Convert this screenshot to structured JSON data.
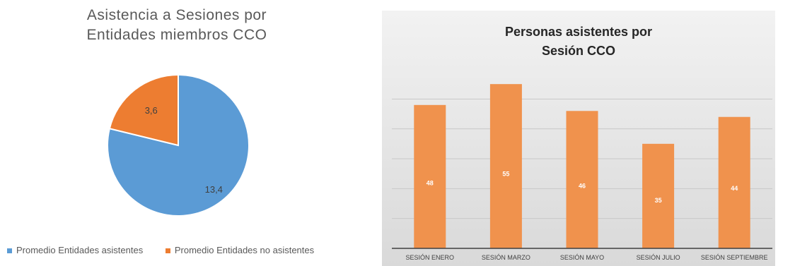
{
  "chart_data": [
    {
      "type": "pie",
      "title_lines": [
        "Asistencia a Sesiones por",
        "Entidades miembros CCO"
      ],
      "slices": [
        {
          "label": "Promedio Entidades asistentes",
          "value": 13.4,
          "value_label": "13,4",
          "color": "#5b9bd5"
        },
        {
          "label": "Promedio Entidades no asistentes",
          "value": 3.6,
          "value_label": "3,6",
          "color": "#ed7d31"
        }
      ],
      "legend_position": "bottom"
    },
    {
      "type": "bar",
      "title_lines": [
        "Personas asistentes por",
        "Sesión CCO"
      ],
      "categories": [
        "SESIÓN ENERO",
        "SESIÓN MARZO",
        "SESIÓN MAYO",
        "SESIÓN JULIO",
        "SESIÓN SEPTIEMBRE"
      ],
      "values": [
        48,
        55,
        46,
        35,
        44
      ],
      "ylim": [
        0,
        60
      ],
      "grid": true,
      "bar_color": "#f0924d",
      "xlabel": "",
      "ylabel": ""
    }
  ]
}
